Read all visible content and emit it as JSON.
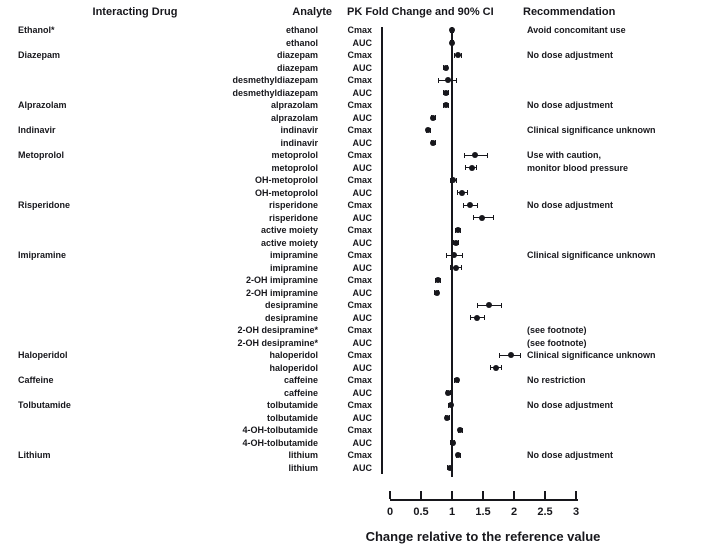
{
  "page": {
    "background": "#ffffff",
    "ink_color": "#17171c"
  },
  "headers": {
    "interacting_drug": "Interacting Drug",
    "analyte": "Analyte",
    "pk_fold_change": "PK Fold Change and 90% CI",
    "recommendation": "Recommendation"
  },
  "chart_data": {
    "type": "scatter",
    "subtype": "forest-plot",
    "title": "PK Fold Change and 90% CI",
    "xlabel": "Change relative to the reference value",
    "x_ticks": [
      "0",
      "0.5",
      "1",
      "1.5",
      "2",
      "2.5",
      "3"
    ],
    "x_tick_values": [
      0,
      0.5,
      1,
      1.5,
      2,
      2.5,
      3
    ],
    "xlim": [
      0,
      3
    ],
    "reference_line_x": 1,
    "grid": false,
    "marker_color": "#17171c",
    "rows": [
      {
        "drug": "Ethanol*",
        "analyte": "ethanol",
        "pk": "Cmax",
        "value": 1.0,
        "lo": 0.96,
        "hi": 1.04,
        "rec": "Avoid concomitant use"
      },
      {
        "drug": "",
        "analyte": "ethanol",
        "pk": "AUC",
        "value": 1.0,
        "lo": 0.97,
        "hi": 1.03,
        "rec": ""
      },
      {
        "drug": "Diazepam",
        "analyte": "diazepam",
        "pk": "Cmax",
        "value": 1.09,
        "lo": 1.03,
        "hi": 1.16,
        "rec": "No dose adjustment"
      },
      {
        "drug": "",
        "analyte": "diazepam",
        "pk": "AUC",
        "value": 0.9,
        "lo": 0.86,
        "hi": 0.94,
        "rec": ""
      },
      {
        "drug": "",
        "analyte": "desmethyldiazepam",
        "pk": "Cmax",
        "value": 0.93,
        "lo": 0.78,
        "hi": 1.08,
        "rec": ""
      },
      {
        "drug": "",
        "analyte": "desmethyldiazepam",
        "pk": "AUC",
        "value": 0.9,
        "lo": 0.85,
        "hi": 0.95,
        "rec": ""
      },
      {
        "drug": "Alprazolam",
        "analyte": "alprazolam",
        "pk": "Cmax",
        "value": 0.9,
        "lo": 0.85,
        "hi": 0.95,
        "rec": "No dose adjustment"
      },
      {
        "drug": "",
        "analyte": "alprazolam",
        "pk": "AUC",
        "value": 0.7,
        "lo": 0.66,
        "hi": 0.74,
        "rec": ""
      },
      {
        "drug": "Indinavir",
        "analyte": "indinavir",
        "pk": "Cmax",
        "value": 0.62,
        "lo": 0.58,
        "hi": 0.66,
        "rec": "Clinical significance unknown"
      },
      {
        "drug": "",
        "analyte": "indinavir",
        "pk": "AUC",
        "value": 0.7,
        "lo": 0.66,
        "hi": 0.74,
        "rec": ""
      },
      {
        "drug": "Metoprolol",
        "analyte": "metoprolol",
        "pk": "Cmax",
        "value": 1.37,
        "lo": 1.2,
        "hi": 1.58,
        "rec": "Use with caution,"
      },
      {
        "drug": "",
        "analyte": "metoprolol",
        "pk": "AUC",
        "value": 1.32,
        "lo": 1.21,
        "hi": 1.41,
        "rec": "monitor blood pressure"
      },
      {
        "drug": "",
        "analyte": "OH-metoprolol",
        "pk": "Cmax",
        "value": 1.02,
        "lo": 0.96,
        "hi": 1.08,
        "rec": ""
      },
      {
        "drug": "",
        "analyte": "OH-metoprolol",
        "pk": "AUC",
        "value": 1.16,
        "lo": 1.08,
        "hi": 1.26,
        "rec": ""
      },
      {
        "drug": "Risperidone",
        "analyte": "risperidone",
        "pk": "Cmax",
        "value": 1.29,
        "lo": 1.18,
        "hi": 1.42,
        "rec": "No dose adjustment"
      },
      {
        "drug": "",
        "analyte": "risperidone",
        "pk": "AUC",
        "value": 1.48,
        "lo": 1.34,
        "hi": 1.67,
        "rec": ""
      },
      {
        "drug": "",
        "analyte": "active moiety",
        "pk": "Cmax",
        "value": 1.1,
        "lo": 1.05,
        "hi": 1.15,
        "rec": ""
      },
      {
        "drug": "",
        "analyte": "active moiety",
        "pk": "AUC",
        "value": 1.06,
        "lo": 1.02,
        "hi": 1.11,
        "rec": ""
      },
      {
        "drug": "Imipramine",
        "analyte": "imipramine",
        "pk": "Cmax",
        "value": 1.03,
        "lo": 0.9,
        "hi": 1.17,
        "rec": "Clinical significance unknown"
      },
      {
        "drug": "",
        "analyte": "imipramine",
        "pk": "AUC",
        "value": 1.06,
        "lo": 0.96,
        "hi": 1.16,
        "rec": ""
      },
      {
        "drug": "",
        "analyte": "2-OH imipramine",
        "pk": "Cmax",
        "value": 0.78,
        "lo": 0.73,
        "hi": 0.83,
        "rec": ""
      },
      {
        "drug": "",
        "analyte": "2-OH imipramine",
        "pk": "AUC",
        "value": 0.75,
        "lo": 0.71,
        "hi": 0.79,
        "rec": ""
      },
      {
        "drug": "",
        "analyte": "desipramine",
        "pk": "Cmax",
        "value": 1.59,
        "lo": 1.4,
        "hi": 1.8,
        "rec": ""
      },
      {
        "drug": "",
        "analyte": "desipramine",
        "pk": "AUC",
        "value": 1.41,
        "lo": 1.29,
        "hi": 1.54,
        "rec": ""
      },
      {
        "drug": "",
        "analyte": "2-OH desipramine*",
        "pk": "Cmax",
        "value": null,
        "lo": null,
        "hi": null,
        "rec": "(see footnote)"
      },
      {
        "drug": "",
        "analyte": "2-OH desipramine*",
        "pk": "AUC",
        "value": null,
        "lo": null,
        "hi": null,
        "rec": "(see footnote)"
      },
      {
        "drug": "Haloperidol",
        "analyte": "haloperidol",
        "pk": "Cmax",
        "value": 1.95,
        "lo": 1.76,
        "hi": 2.12,
        "rec": "Clinical significance unknown"
      },
      {
        "drug": "",
        "analyte": "haloperidol",
        "pk": "AUC",
        "value": 1.71,
        "lo": 1.61,
        "hi": 1.81,
        "rec": ""
      },
      {
        "drug": "Caffeine",
        "analyte": "caffeine",
        "pk": "Cmax",
        "value": 1.08,
        "lo": 1.04,
        "hi": 1.12,
        "rec": "No restriction"
      },
      {
        "drug": "",
        "analyte": "caffeine",
        "pk": "AUC",
        "value": 0.94,
        "lo": 0.9,
        "hi": 0.98,
        "rec": ""
      },
      {
        "drug": "Tolbutamide",
        "analyte": "tolbutamide",
        "pk": "Cmax",
        "value": 0.98,
        "lo": 0.94,
        "hi": 1.02,
        "rec": "No dose adjustment"
      },
      {
        "drug": "",
        "analyte": "tolbutamide",
        "pk": "AUC",
        "value": 0.92,
        "lo": 0.88,
        "hi": 0.96,
        "rec": ""
      },
      {
        "drug": "",
        "analyte": "4-OH-tolbutamide",
        "pk": "Cmax",
        "value": 1.13,
        "lo": 1.09,
        "hi": 1.17,
        "rec": ""
      },
      {
        "drug": "",
        "analyte": "4-OH-tolbutamide",
        "pk": "AUC",
        "value": 1.01,
        "lo": 0.97,
        "hi": 1.05,
        "rec": ""
      },
      {
        "drug": "Lithium",
        "analyte": "lithium",
        "pk": "Cmax",
        "value": 1.1,
        "lo": 1.06,
        "hi": 1.15,
        "rec": "No dose adjustment"
      },
      {
        "drug": "",
        "analyte": "lithium",
        "pk": "AUC",
        "value": 0.96,
        "lo": 0.92,
        "hi": 1.0,
        "rec": ""
      }
    ]
  }
}
